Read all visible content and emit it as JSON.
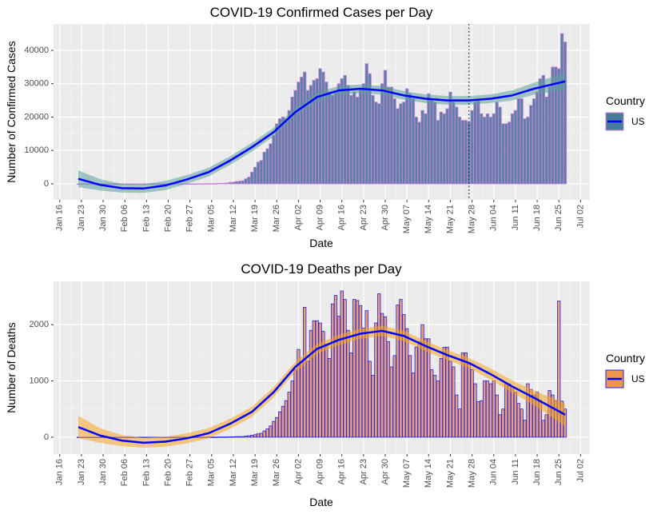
{
  "chart_data": [
    {
      "type": "bar",
      "title": "COVID-19 Confirmed Cases per Day",
      "x_label": "Date",
      "y_label": "Number of Confirmed Cases",
      "legend_title": "Country",
      "grid": true,
      "xlim": [
        "Jan 14",
        "Jul 05"
      ],
      "ylim": [
        -4800,
        47900
      ],
      "xticks": [
        "Jan 16",
        "Jan 23",
        "Jan 30",
        "Feb 06",
        "Feb 13",
        "Feb 20",
        "Feb 27",
        "Mar 05",
        "Mar 12",
        "Mar 19",
        "Mar 26",
        "Apr 02",
        "Apr 09",
        "Apr 16",
        "Apr 23",
        "Apr 30",
        "May 07",
        "May 14",
        "May 21",
        "May 28",
        "Jun 04",
        "Jun 11",
        "Jun 18",
        "Jun 25",
        "Jul 02"
      ],
      "yticks": [
        0,
        10000,
        20000,
        30000,
        40000
      ],
      "vline": "May 27",
      "x": [
        "Jan 22",
        "Jan 23",
        "Jan 24",
        "Jan 25",
        "Jan 26",
        "Jan 27",
        "Jan 28",
        "Jan 29",
        "Jan 30",
        "Jan 31",
        "Feb 01",
        "Feb 02",
        "Feb 03",
        "Feb 04",
        "Feb 05",
        "Feb 06",
        "Feb 07",
        "Feb 08",
        "Feb 09",
        "Feb 10",
        "Feb 11",
        "Feb 12",
        "Feb 13",
        "Feb 14",
        "Feb 15",
        "Feb 16",
        "Feb 17",
        "Feb 18",
        "Feb 19",
        "Feb 20",
        "Feb 21",
        "Feb 22",
        "Feb 23",
        "Feb 24",
        "Feb 25",
        "Feb 26",
        "Feb 27",
        "Feb 28",
        "Feb 29",
        "Mar 01",
        "Mar 02",
        "Mar 03",
        "Mar 04",
        "Mar 05",
        "Mar 06",
        "Mar 07",
        "Mar 08",
        "Mar 09",
        "Mar 10",
        "Mar 11",
        "Mar 12",
        "Mar 13",
        "Mar 14",
        "Mar 15",
        "Mar 16",
        "Mar 17",
        "Mar 18",
        "Mar 19",
        "Mar 20",
        "Mar 21",
        "Mar 22",
        "Mar 23",
        "Mar 24",
        "Mar 25",
        "Mar 26",
        "Mar 27",
        "Mar 28",
        "Mar 29",
        "Mar 30",
        "Mar 31",
        "Apr 01",
        "Apr 02",
        "Apr 03",
        "Apr 04",
        "Apr 05",
        "Apr 06",
        "Apr 07",
        "Apr 08",
        "Apr 09",
        "Apr 10",
        "Apr 11",
        "Apr 12",
        "Apr 13",
        "Apr 14",
        "Apr 15",
        "Apr 16",
        "Apr 17",
        "Apr 18",
        "Apr 19",
        "Apr 20",
        "Apr 21",
        "Apr 22",
        "Apr 23",
        "Apr 24",
        "Apr 25",
        "Apr 26",
        "Apr 27",
        "Apr 28",
        "Apr 29",
        "Apr 30",
        "May 01",
        "May 02",
        "May 03",
        "May 04",
        "May 05",
        "May 06",
        "May 07",
        "May 08",
        "May 09",
        "May 10",
        "May 11",
        "May 12",
        "May 13",
        "May 14",
        "May 15",
        "May 16",
        "May 17",
        "May 18",
        "May 19",
        "May 20",
        "May 21",
        "May 22",
        "May 23",
        "May 24",
        "May 25",
        "May 26",
        "May 27",
        "May 28",
        "May 29",
        "May 30",
        "May 31",
        "Jun 01",
        "Jun 02",
        "Jun 03",
        "Jun 04",
        "Jun 05",
        "Jun 06",
        "Jun 07",
        "Jun 08",
        "Jun 09",
        "Jun 10",
        "Jun 11",
        "Jun 12",
        "Jun 13",
        "Jun 14",
        "Jun 15",
        "Jun 16",
        "Jun 17",
        "Jun 18",
        "Jun 19",
        "Jun 20",
        "Jun 21",
        "Jun 22",
        "Jun 23",
        "Jun 24",
        "Jun 25",
        "Jun 26",
        "Jun 27"
      ],
      "series": [
        {
          "name": "US",
          "color": "#3f6f96",
          "edge": "#c77ddc",
          "values": [
            1,
            0,
            1,
            0,
            3,
            0,
            0,
            0,
            0,
            2,
            1,
            0,
            3,
            0,
            0,
            0,
            0,
            0,
            1,
            0,
            1,
            0,
            1,
            0,
            0,
            0,
            0,
            0,
            0,
            0,
            0,
            0,
            0,
            0,
            0,
            1,
            0,
            2,
            8,
            20,
            25,
            30,
            50,
            70,
            90,
            120,
            140,
            180,
            260,
            450,
            500,
            700,
            800,
            900,
            1500,
            2000,
            3500,
            5000,
            6500,
            7000,
            9500,
            10500,
            12000,
            14500,
            18000,
            19500,
            20000,
            19500,
            22000,
            26000,
            28000,
            30500,
            32000,
            33500,
            28000,
            29500,
            31000,
            31500,
            34500,
            33500,
            30500,
            27500,
            26500,
            27500,
            30000,
            31500,
            32500,
            29500,
            26500,
            27500,
            26000,
            28500,
            30000,
            36000,
            33000,
            26500,
            24500,
            24000,
            30000,
            34000,
            29000,
            29000,
            25500,
            22500,
            24000,
            24500,
            28500,
            27000,
            25500,
            20000,
            18500,
            22000,
            21000,
            27000,
            25500,
            24500,
            19000,
            21500,
            21000,
            22500,
            27500,
            24500,
            23000,
            20000,
            19000,
            19000,
            18500,
            22000,
            24500,
            25000,
            21000,
            20000,
            21000,
            20000,
            21000,
            24500,
            23000,
            18000,
            18000,
            18500,
            21000,
            22000,
            25500,
            25500,
            19500,
            20000,
            23500,
            25500,
            27500,
            31500,
            32500,
            26000,
            29000,
            35000,
            35000,
            34500,
            45000,
            42500
          ]
        }
      ],
      "trend": {
        "color": "#0000ff",
        "band_color": "#5f9ea0",
        "x": [
          "Jan 22",
          "Jan 29",
          "Feb 05",
          "Feb 12",
          "Feb 19",
          "Feb 26",
          "Mar 04",
          "Mar 11",
          "Mar 18",
          "Mar 25",
          "Apr 01",
          "Apr 08",
          "Apr 15",
          "Apr 22",
          "Apr 29",
          "May 06",
          "May 13",
          "May 20",
          "May 27",
          "Jun 03",
          "Jun 10",
          "Jun 17",
          "Jun 27"
        ],
        "values": [
          1500,
          -300,
          -1300,
          -1400,
          -500,
          1300,
          3500,
          7000,
          11000,
          15500,
          21500,
          26000,
          28000,
          28500,
          28000,
          26500,
          25500,
          25000,
          25000,
          25500,
          26500,
          28500,
          30700
        ],
        "lower": [
          -1000,
          -2000,
          -2600,
          -2700,
          -1900,
          0,
          2200,
          5700,
          9700,
          14200,
          20200,
          24700,
          26700,
          27200,
          26700,
          25200,
          24200,
          23700,
          23700,
          24200,
          25000,
          26700,
          28200
        ],
        "upper": [
          4000,
          1400,
          0,
          -100,
          900,
          2600,
          4800,
          8300,
          12300,
          16800,
          22800,
          27300,
          29300,
          29800,
          29300,
          27800,
          26800,
          26300,
          26300,
          26800,
          28000,
          30300,
          33200
        ]
      }
    },
    {
      "type": "bar",
      "title": "COVID-19 Deaths per Day",
      "x_label": "Date",
      "y_label": "Number of Deaths",
      "legend_title": "Country",
      "grid": true,
      "xlim": [
        "Jan 14",
        "Jul 05"
      ],
      "ylim": [
        -300,
        2770
      ],
      "xticks": [
        "Jan 16",
        "Jan 23",
        "Jan 30",
        "Feb 06",
        "Feb 13",
        "Feb 20",
        "Feb 27",
        "Mar 05",
        "Mar 12",
        "Mar 19",
        "Mar 26",
        "Apr 02",
        "Apr 09",
        "Apr 16",
        "Apr 23",
        "Apr 30",
        "May 07",
        "May 14",
        "May 21",
        "May 28",
        "Jun 04",
        "Jun 11",
        "Jun 18",
        "Jun 25",
        "Jul 02"
      ],
      "yticks": [
        0,
        1000,
        2000
      ],
      "x": [
        "Jan 22",
        "Jan 23",
        "Jan 24",
        "Jan 25",
        "Jan 26",
        "Jan 27",
        "Jan 28",
        "Jan 29",
        "Jan 30",
        "Jan 31",
        "Feb 01",
        "Feb 02",
        "Feb 03",
        "Feb 04",
        "Feb 05",
        "Feb 06",
        "Feb 07",
        "Feb 08",
        "Feb 09",
        "Feb 10",
        "Feb 11",
        "Feb 12",
        "Feb 13",
        "Feb 14",
        "Feb 15",
        "Feb 16",
        "Feb 17",
        "Feb 18",
        "Feb 19",
        "Feb 20",
        "Feb 21",
        "Feb 22",
        "Feb 23",
        "Feb 24",
        "Feb 25",
        "Feb 26",
        "Feb 27",
        "Feb 28",
        "Feb 29",
        "Mar 01",
        "Mar 02",
        "Mar 03",
        "Mar 04",
        "Mar 05",
        "Mar 06",
        "Mar 07",
        "Mar 08",
        "Mar 09",
        "Mar 10",
        "Mar 11",
        "Mar 12",
        "Mar 13",
        "Mar 14",
        "Mar 15",
        "Mar 16",
        "Mar 17",
        "Mar 18",
        "Mar 19",
        "Mar 20",
        "Mar 21",
        "Mar 22",
        "Mar 23",
        "Mar 24",
        "Mar 25",
        "Mar 26",
        "Mar 27",
        "Mar 28",
        "Mar 29",
        "Mar 30",
        "Mar 31",
        "Apr 01",
        "Apr 02",
        "Apr 03",
        "Apr 04",
        "Apr 05",
        "Apr 06",
        "Apr 07",
        "Apr 08",
        "Apr 09",
        "Apr 10",
        "Apr 11",
        "Apr 12",
        "Apr 13",
        "Apr 14",
        "Apr 15",
        "Apr 16",
        "Apr 17",
        "Apr 18",
        "Apr 19",
        "Apr 20",
        "Apr 21",
        "Apr 22",
        "Apr 23",
        "Apr 24",
        "Apr 25",
        "Apr 26",
        "Apr 27",
        "Apr 28",
        "Apr 29",
        "Apr 30",
        "May 01",
        "May 02",
        "May 03",
        "May 04",
        "May 05",
        "May 06",
        "May 07",
        "May 08",
        "May 09",
        "May 10",
        "May 11",
        "May 12",
        "May 13",
        "May 14",
        "May 15",
        "May 16",
        "May 17",
        "May 18",
        "May 19",
        "May 20",
        "May 21",
        "May 22",
        "May 23",
        "May 24",
        "May 25",
        "May 26",
        "May 27",
        "May 28",
        "May 29",
        "May 30",
        "May 31",
        "Jun 01",
        "Jun 02",
        "Jun 03",
        "Jun 04",
        "Jun 05",
        "Jun 06",
        "Jun 07",
        "Jun 08",
        "Jun 09",
        "Jun 10",
        "Jun 11",
        "Jun 12",
        "Jun 13",
        "Jun 14",
        "Jun 15",
        "Jun 16",
        "Jun 17",
        "Jun 18",
        "Jun 19",
        "Jun 20",
        "Jun 21",
        "Jun 22",
        "Jun 23",
        "Jun 24",
        "Jun 25",
        "Jun 26",
        "Jun 27"
      ],
      "series": [
        {
          "name": "US",
          "color": "#e8925f",
          "edge": "#2222ee",
          "values": [
            0,
            0,
            0,
            0,
            0,
            0,
            0,
            0,
            0,
            0,
            0,
            0,
            0,
            0,
            0,
            0,
            0,
            0,
            0,
            0,
            0,
            0,
            0,
            0,
            0,
            0,
            0,
            0,
            0,
            0,
            0,
            0,
            0,
            0,
            0,
            0,
            0,
            0,
            1,
            1,
            1,
            2,
            5,
            1,
            2,
            3,
            4,
            3,
            5,
            7,
            6,
            10,
            10,
            10,
            20,
            25,
            35,
            45,
            60,
            70,
            110,
            150,
            200,
            280,
            350,
            450,
            550,
            650,
            800,
            1000,
            1200,
            1560,
            1350,
            2310,
            1350,
            1900,
            2070,
            2070,
            2030,
            1880,
            1650,
            1400,
            2370,
            2520,
            2150,
            2600,
            2450,
            1900,
            1500,
            2450,
            2430,
            2340,
            1940,
            2250,
            1350,
            1100,
            2030,
            2550,
            2200,
            2140,
            1700,
            1250,
            1450,
            2350,
            2450,
            2180,
            1930,
            1450,
            1140,
            1600,
            1700,
            2000,
            1750,
            1750,
            1200,
            1100,
            1000,
            1400,
            1600,
            1600,
            1350,
            1250,
            750,
            500,
            1500,
            1500,
            1300,
            1200,
            950,
            630,
            650,
            1000,
            1000,
            950,
            1000,
            750,
            400,
            500,
            950,
            950,
            900,
            800,
            600,
            500,
            300,
            950,
            850,
            750,
            800,
            650,
            300,
            400,
            830,
            750,
            650,
            2420,
            640,
            500
          ]
        }
      ],
      "trend": {
        "color": "#0000ff",
        "band_color": "#f5a623",
        "x": [
          "Jan 22",
          "Jan 29",
          "Feb 05",
          "Feb 12",
          "Feb 19",
          "Feb 26",
          "Mar 04",
          "Mar 11",
          "Mar 18",
          "Mar 25",
          "Apr 01",
          "Apr 08",
          "Apr 15",
          "Apr 22",
          "Apr 29",
          "May 06",
          "May 13",
          "May 20",
          "May 27",
          "Jun 03",
          "Jun 10",
          "Jun 17",
          "Jun 27"
        ],
        "values": [
          180,
          30,
          -60,
          -100,
          -80,
          -20,
          70,
          240,
          450,
          800,
          1250,
          1570,
          1730,
          1840,
          1890,
          1800,
          1620,
          1460,
          1320,
          1120,
          900,
          700,
          400
        ],
        "lower": [
          -20,
          -100,
          -160,
          -190,
          -170,
          -110,
          -20,
          150,
          360,
          710,
          1160,
          1480,
          1640,
          1750,
          1800,
          1710,
          1530,
          1370,
          1230,
          1020,
          790,
          570,
          200
        ],
        "upper": [
          380,
          160,
          40,
          -10,
          10,
          70,
          160,
          330,
          540,
          890,
          1340,
          1660,
          1820,
          1930,
          1980,
          1890,
          1710,
          1550,
          1410,
          1220,
          1010,
          830,
          600
        ]
      }
    }
  ]
}
